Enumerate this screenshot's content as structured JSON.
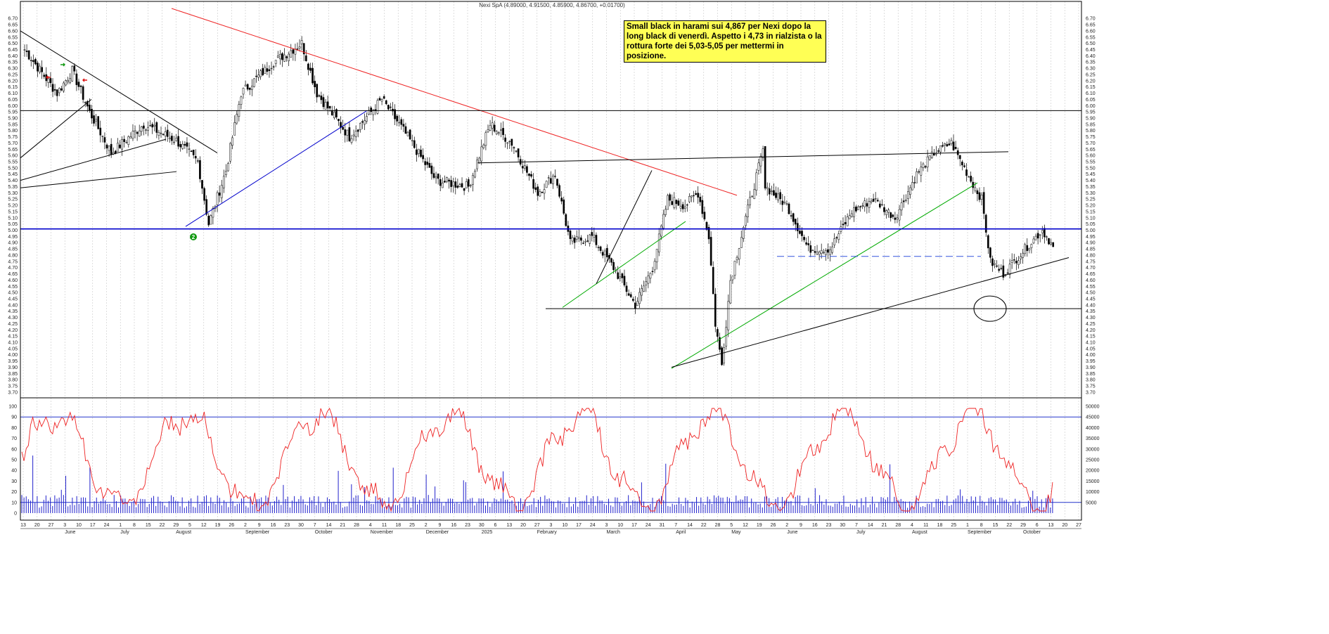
{
  "header": {
    "title": "Nexi SpA (4.89000, 4.91500, 4.85900, 4.86700, +0.01700)"
  },
  "annotation": {
    "text": "Small black in harami sui 4,867 per Nexi dopo la long black di venerdì. Aspetto i 4,73 in rialzista o la rottura forte dei 5,03-5,05 per mettermi in posizione."
  },
  "marker": {
    "label": "2"
  },
  "chart_data": [
    {
      "type": "candlestick",
      "title": "Nexi SpA (4.89000, 4.91500, 4.85900, 4.86700, +0.01700)",
      "last_bar": {
        "open": 4.89,
        "high": 4.915,
        "low": 4.859,
        "close": 4.867,
        "change": 0.017
      },
      "ylim": [
        3.66,
        6.78
      ],
      "yticks": [
        3.7,
        3.75,
        3.8,
        3.85,
        3.9,
        3.95,
        4.0,
        4.05,
        4.1,
        4.15,
        4.2,
        4.25,
        4.3,
        4.35,
        4.4,
        4.45,
        4.5,
        4.55,
        4.6,
        4.65,
        4.7,
        4.75,
        4.8,
        4.85,
        4.9,
        4.95,
        5.0,
        5.05,
        5.1,
        5.15,
        5.2,
        5.25,
        5.3,
        5.35,
        5.4,
        5.45,
        5.5,
        5.55,
        5.6,
        5.65,
        5.7,
        5.75,
        5.8,
        5.85,
        5.9,
        5.95,
        6.0,
        6.05,
        6.1,
        6.15,
        6.2,
        6.25,
        6.3,
        6.35,
        6.4,
        6.45,
        6.5,
        6.55,
        6.6,
        6.65,
        6.7
      ],
      "day_ticks": [
        "13",
        "20",
        "27",
        "3",
        "10",
        "17",
        "24",
        "1",
        "8",
        "15",
        "22",
        "29",
        "5",
        "12",
        "19",
        "26",
        "2",
        "9",
        "16",
        "23",
        "30",
        "7",
        "14",
        "21",
        "28",
        "4",
        "11",
        "18",
        "25",
        "2",
        "9",
        "16",
        "23",
        "30",
        "6",
        "13",
        "20",
        "27",
        "3",
        "10",
        "17",
        "24",
        "3",
        "10",
        "17",
        "24",
        "31",
        "7",
        "14",
        "22",
        "28",
        "5",
        "12",
        "19",
        "26",
        "2",
        "9",
        "16",
        "23",
        "30",
        "7",
        "14",
        "21",
        "28",
        "4",
        "11",
        "18",
        "25",
        "1",
        "8",
        "15",
        "22",
        "29",
        "6",
        "13",
        "20",
        "27"
      ],
      "month_ticks": [
        "June",
        "July",
        "August",
        "September",
        "October",
        "November",
        "December",
        "2025",
        "February",
        "March",
        "April",
        "May",
        "June",
        "July",
        "August",
        "September",
        "October"
      ],
      "horizontal_levels": [
        {
          "value": 5.96,
          "color": "#000000",
          "style": "solid"
        },
        {
          "value": 5.01,
          "color": "#0000cc",
          "style": "solid"
        },
        {
          "value": 4.37,
          "color": "#000000",
          "style": "solid"
        },
        {
          "value": 4.79,
          "color": "#3355dd",
          "style": "dashed"
        }
      ],
      "trendlines_price": [
        {
          "color": "#ee2222",
          "from": 6.78,
          "to": 5.28,
          "label": "red downtrend"
        },
        {
          "color": "#0000cc",
          "from": 5.03,
          "to": 5.96
        },
        {
          "color": "#00aa00",
          "from": 4.38,
          "to": 5.07
        },
        {
          "color": "#00aa00",
          "from": 3.89,
          "to": 5.38
        },
        {
          "color": "#000000",
          "from": 3.9,
          "to": 4.78
        },
        {
          "color": "#000000",
          "from": 5.54,
          "to": 5.63
        }
      ],
      "key_prices": [
        6.52,
        5.03,
        4.37,
        3.89,
        5.67,
        5.72,
        4.61,
        5.03,
        4.867
      ]
    },
    {
      "type": "line",
      "name": "oscillator",
      "ylim": [
        0,
        100
      ],
      "yticks": [
        0,
        10,
        20,
        30,
        40,
        50,
        60,
        70,
        80,
        90,
        100
      ],
      "reference_levels": [
        10,
        90
      ]
    },
    {
      "type": "bar",
      "name": "volume",
      "ylim": [
        0,
        50000
      ],
      "yticks": [
        5000,
        10000,
        15000,
        20000,
        25000,
        30000,
        35000,
        40000,
        45000,
        50000
      ]
    }
  ],
  "colors": {
    "candle_up": "#ffffff",
    "candle_down": "#000000",
    "oscillator": "#ee2222",
    "volume": "#2222cc",
    "grid": "#bbbbbb",
    "annotation_bg": "#ffff55"
  }
}
